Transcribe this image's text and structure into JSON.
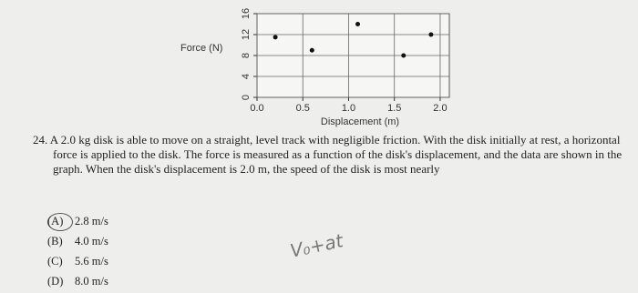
{
  "graph": {
    "type": "scatter",
    "y_label": "Force (N)",
    "x_label": "Displacement (m)",
    "x": [
      0.2,
      0.6,
      1.1,
      1.6,
      1.9
    ],
    "values": [
      11.5,
      9,
      14,
      8,
      12
    ],
    "xlim": [
      0,
      2.1
    ],
    "ylim": [
      0,
      16
    ],
    "xticks": [
      {
        "value": 0,
        "label": "0.0"
      },
      {
        "value": 0.5,
        "label": "0.5"
      },
      {
        "value": 1,
        "label": "1.0"
      },
      {
        "value": 1.5,
        "label": "1.5"
      },
      {
        "value": 2,
        "label": "2.0"
      }
    ],
    "yticks": [
      0,
      4,
      8,
      12,
      16
    ],
    "grid": true
  },
  "question": {
    "number": "24.",
    "text": "A 2.0 kg disk is able to move on a straight, level track with negligible friction. With the disk initially at rest, a horizontal force is applied to the disk. The force is measured as a function of the disk's displacement, and the data are shown in the graph. When the disk's displacement is 2.0 m, the speed of the disk is most nearly"
  },
  "choices": [
    {
      "label": "(A)",
      "text": "2.8 m/s"
    },
    {
      "label": "(B)",
      "text": "4.0 m/s"
    },
    {
      "label": "(C)",
      "text": "5.6 m/s"
    },
    {
      "label": "(D)",
      "text": "8.0 m/s"
    }
  ],
  "handwriting": "V₀+at"
}
